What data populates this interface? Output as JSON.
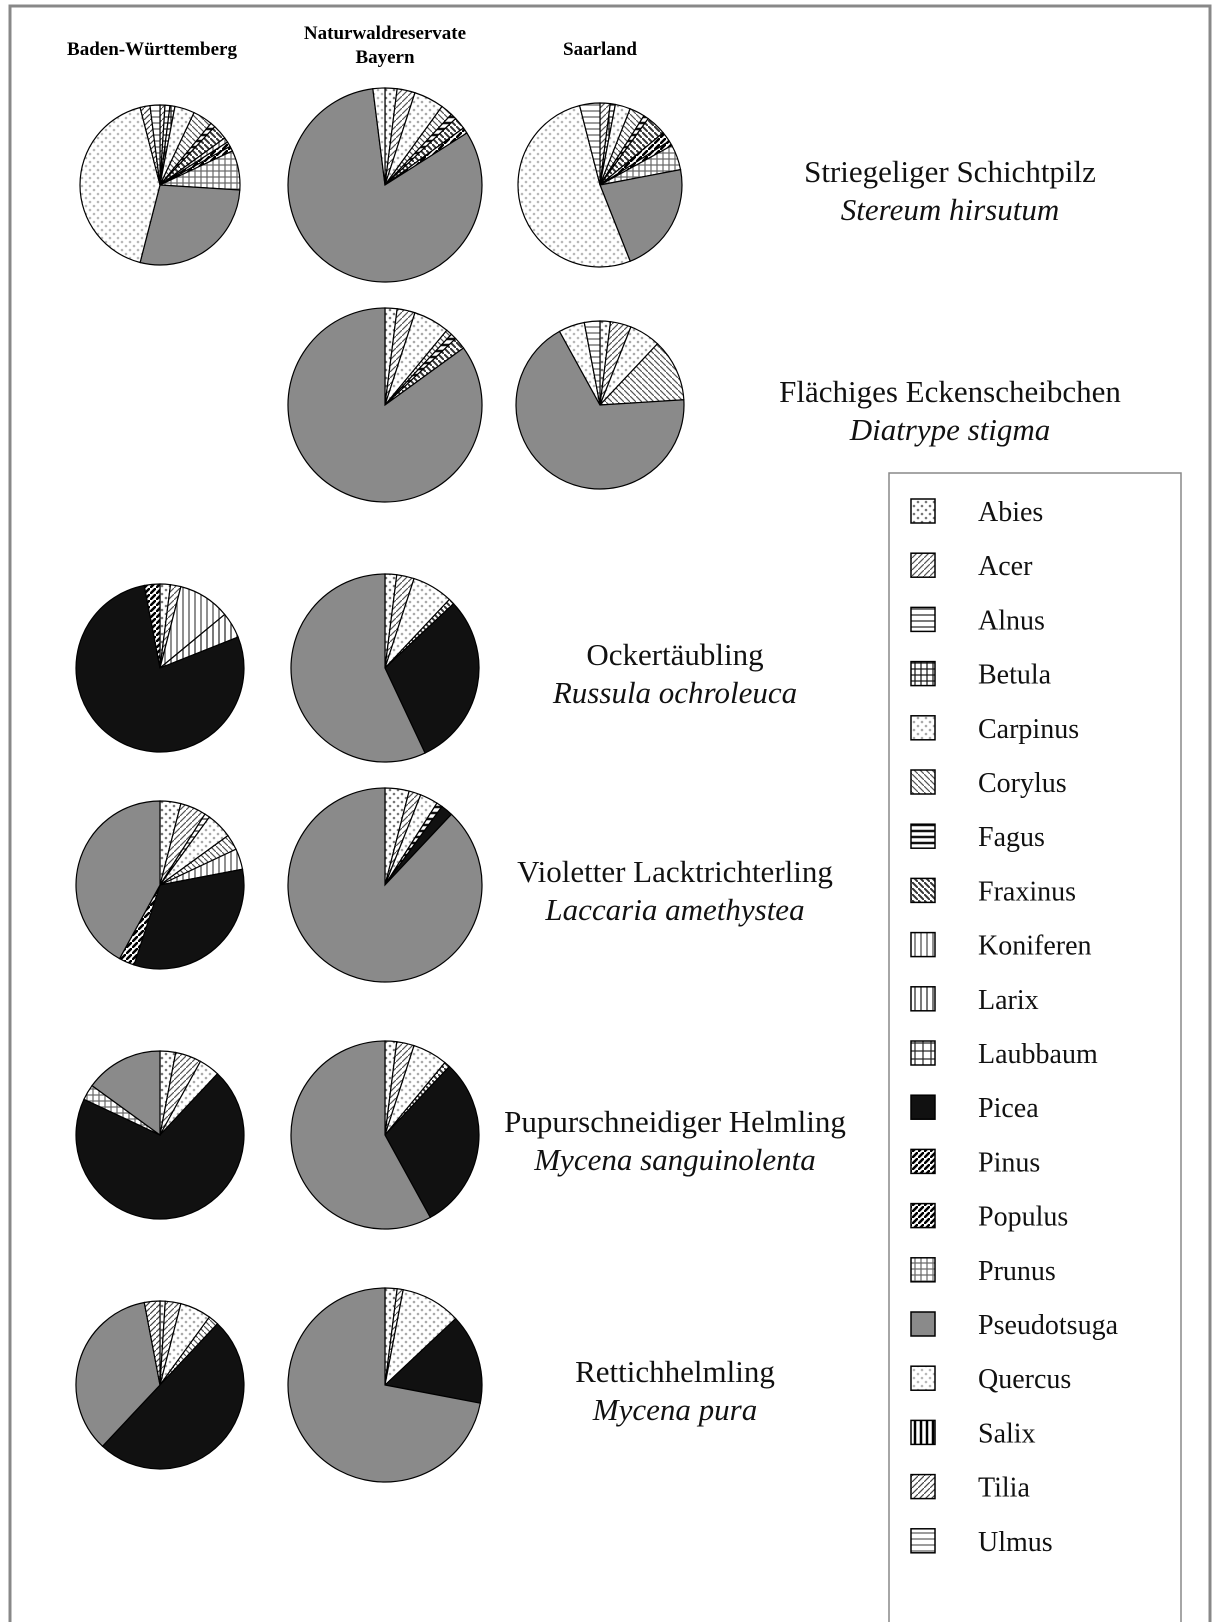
{
  "chart_data": {
    "type": "pie",
    "columns": [
      "Baden-Württemberg",
      "Naturwaldreservate Bayern",
      "Saarland"
    ],
    "categories": [
      "Abies",
      "Acer",
      "Alnus",
      "Betula",
      "Carpinus",
      "Corylus",
      "Fagus",
      "Fraxinus",
      "Koniferen",
      "Larix",
      "Laubbaum",
      "Picea",
      "Pinus",
      "Populus",
      "Prunus",
      "Pseudotsuga",
      "Quercus",
      "Salix",
      "Tilia",
      "Ulmus"
    ],
    "colors": [
      "#777777",
      "#555555",
      "#333333",
      "#111111",
      "#aaaaaa",
      "#555555",
      "#111111",
      "#333333",
      "#555555",
      "#333333",
      "#222222",
      "#111111",
      "#000000",
      "#000000",
      "#666666",
      "#8a8a8a",
      "#b8b8b8",
      "#000000",
      "#444444",
      "#666666"
    ],
    "rows": [
      {
        "title": "Striegeliger Schichtpilz",
        "subtitle": "Stereum hirsutum",
        "pies": [
          [
            0,
            1,
            1,
            1,
            4,
            4,
            1,
            3,
            1,
            0,
            0,
            0,
            1,
            1,
            8,
            28,
            42,
            0,
            2,
            2
          ],
          [
            2,
            3,
            0,
            0,
            5,
            2,
            1,
            2,
            0,
            0,
            0,
            0,
            0,
            1,
            0,
            82,
            2,
            0,
            0,
            0
          ],
          [
            0,
            2,
            0,
            1,
            3,
            3,
            1,
            4,
            0,
            0,
            0,
            0,
            2,
            1,
            5,
            22,
            52,
            0,
            0,
            4
          ]
        ]
      },
      {
        "title": "Flächiges Eckenscheibchen",
        "subtitle": "Diatrype stigma",
        "pies": [
          null,
          [
            2,
            3,
            0,
            0,
            6,
            1,
            1,
            2,
            0,
            0,
            0,
            0,
            0,
            0,
            0,
            85,
            0,
            0,
            0,
            0
          ],
          [
            2,
            4,
            0,
            0,
            6,
            12,
            0,
            0,
            0,
            0,
            0,
            0,
            0,
            0,
            0,
            68,
            5,
            0,
            0,
            3
          ]
        ]
      },
      {
        "title": "Ockertäubling",
        "subtitle": "Russula ochroleuca",
        "pies": [
          [
            2,
            2,
            0,
            0,
            0,
            0,
            0,
            0,
            10,
            5,
            0,
            78,
            3,
            0,
            0,
            0,
            0,
            0,
            0,
            0
          ],
          [
            2,
            3,
            0,
            0,
            7,
            0,
            0,
            1,
            0,
            0,
            0,
            30,
            0,
            0,
            0,
            57,
            0,
            0,
            0,
            0
          ],
          null
        ]
      },
      {
        "title": "Violetter Lacktrichterling",
        "subtitle": "Laccaria amethystea",
        "pies": [
          [
            4,
            5,
            1,
            0,
            5,
            3,
            0,
            0,
            4,
            0,
            0,
            33,
            3,
            0,
            0,
            42,
            0,
            0,
            0,
            0
          ],
          [
            4,
            2,
            0,
            0,
            3,
            0,
            1,
            0,
            0,
            0,
            0,
            2,
            0,
            0,
            0,
            88,
            0,
            0,
            0,
            0
          ],
          null
        ]
      },
      {
        "title": "Pupurschneidiger Helmling",
        "subtitle": "Mycena sanguinolenta",
        "pies": [
          [
            3,
            5,
            0,
            0,
            4,
            0,
            0,
            0,
            0,
            0,
            0,
            70,
            0,
            0,
            3,
            15,
            0,
            0,
            0,
            0
          ],
          [
            2,
            3,
            0,
            0,
            6,
            0,
            0,
            1,
            0,
            0,
            0,
            30,
            0,
            0,
            0,
            58,
            0,
            0,
            0,
            0
          ],
          null
        ]
      },
      {
        "title": "Rettichhelmling",
        "subtitle": "Mycena pura",
        "pies": [
          [
            1,
            3,
            0,
            0,
            6,
            2,
            0,
            0,
            0,
            0,
            0,
            50,
            0,
            0,
            0,
            35,
            0,
            0,
            3,
            0
          ],
          [
            2,
            1,
            0,
            0,
            10,
            0,
            0,
            0,
            0,
            0,
            0,
            15,
            0,
            0,
            0,
            72,
            0,
            0,
            0,
            0
          ],
          null
        ]
      }
    ]
  }
}
